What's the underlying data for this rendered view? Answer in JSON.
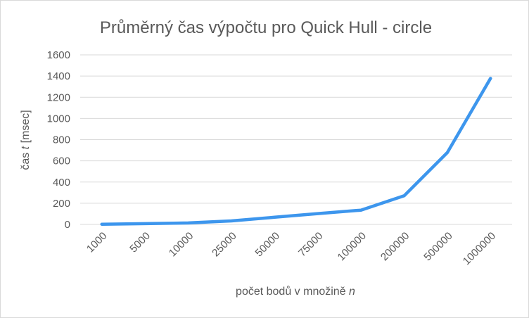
{
  "chart_data": {
    "type": "line",
    "title": "Průměrný čas výpočtu pro Quick Hull - circle",
    "xlabel_prefix": "počet bodů v množině ",
    "xlabel_var": "n",
    "ylabel_prefix": "čas ",
    "ylabel_var": "t",
    "ylabel_suffix": " [msec]",
    "categories": [
      "1000",
      "5000",
      "10000",
      "25000",
      "50000",
      "75000",
      "100000",
      "200000",
      "500000",
      "1000000"
    ],
    "series": [
      {
        "values": [
          2,
          7,
          14,
          33,
          68,
          102,
          135,
          270,
          678,
          1378
        ]
      }
    ],
    "ylim": [
      0,
      1600
    ],
    "yticks": [
      "0",
      "200",
      "400",
      "600",
      "800",
      "1000",
      "1200",
      "1400",
      "1600"
    ],
    "grid": true,
    "legend": "none",
    "color": "#3d96ed"
  }
}
